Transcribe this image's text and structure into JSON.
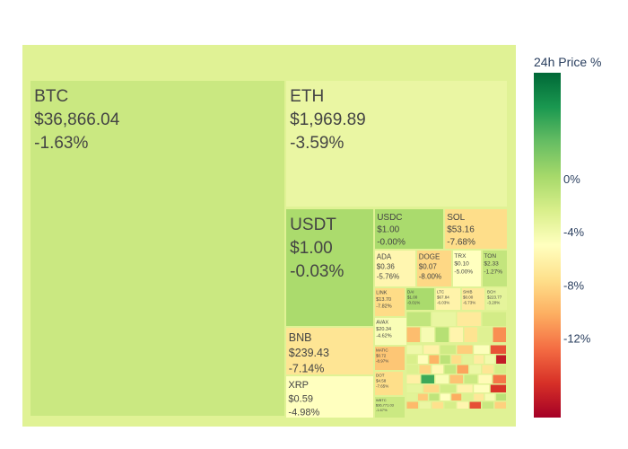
{
  "chart_data": {
    "type": "treemap",
    "colorbar": {
      "title": "24h Price %",
      "ticks": [
        "0%",
        "-4%",
        "-8%",
        "-12%"
      ],
      "tick_values": [
        0,
        -4,
        -8,
        -12
      ],
      "range": [
        -18,
        8
      ],
      "colorscale": [
        "#a50026",
        "#d73027",
        "#f46d43",
        "#fdae61",
        "#fee08b",
        "#ffffbf",
        "#d9ef8b",
        "#a6d96a",
        "#66bd63",
        "#1a9850",
        "#006837"
      ]
    },
    "root_change": -2.9,
    "labeled_tiles": [
      {
        "symbol": "BTC",
        "price": "$36,866.04",
        "change_text": "-1.63%",
        "change": -1.63
      },
      {
        "symbol": "ETH",
        "price": "$1,969.89",
        "change_text": "-3.59%",
        "change": -3.59
      },
      {
        "symbol": "USDT",
        "price": "$1.00",
        "change_text": "-0.03%",
        "change": -0.03
      },
      {
        "symbol": "BNB",
        "price": "$239.43",
        "change_text": "-7.14%",
        "change": -7.14
      },
      {
        "symbol": "XRP",
        "price": "$0.59",
        "change_text": "-4.98%",
        "change": -4.98
      },
      {
        "symbol": "USDC",
        "price": "$1.00",
        "change_text": "-0.00%",
        "change": -0.0
      },
      {
        "symbol": "SOL",
        "price": "$53.16",
        "change_text": "-7.68%",
        "change": -7.68
      },
      {
        "symbol": "ADA",
        "price": "$0.36",
        "change_text": "-5.76%",
        "change": -5.76
      },
      {
        "symbol": "DOGE",
        "price": "$0.07",
        "change_text": "-8.00%",
        "change": -8.0
      },
      {
        "symbol": "TRX",
        "price": "$0.10",
        "change_text": "-5.00%",
        "change": -5.0
      },
      {
        "symbol": "TON",
        "price": "$2.33",
        "change_text": "-1.27%",
        "change": -1.27
      },
      {
        "symbol": "LINK",
        "price": "$13.70",
        "change_text": "-7.82%",
        "change": -7.82
      },
      {
        "symbol": "DAI",
        "price": "$1.00",
        "change_text": "-0.01%",
        "change": -0.01
      },
      {
        "symbol": "LTC",
        "price": "$67.84",
        "change_text": "-6.03%",
        "change": -6.03
      },
      {
        "symbol": "SHIB",
        "price": "$0.00",
        "change_text": "-6.73%",
        "change": -6.73
      },
      {
        "symbol": "BCH",
        "price": "$223.77",
        "change_text": "-3.20%",
        "change": -3.2
      },
      {
        "symbol": "AVAX",
        "price": "$20.34",
        "change_text": "-4.62%",
        "change": -4.62
      },
      {
        "symbol": "MATIC",
        "price": "$0.72",
        "change_text": "-8.97%",
        "change": -8.97
      },
      {
        "symbol": "DOT",
        "price": "$4.58",
        "change_text": "-7.65%",
        "change": -7.65
      },
      {
        "symbol": "WBTC",
        "price": "$36,771.03",
        "change_text": "-1.67%",
        "change": -1.67
      }
    ],
    "small_tiles_changes": [
      -1.2,
      -3.5,
      -6.8,
      -2.1,
      -9.4,
      -4.4,
      -0.6,
      -5.9,
      -7.3,
      -2.8,
      -11.5,
      -3.9,
      -6.1,
      -1.9,
      -8.6,
      -4.8,
      -13.9,
      -2.4,
      -5.2,
      -9.9,
      -0.9,
      -7.7,
      -3.1,
      -6.5,
      -4.1,
      -16.5,
      -2.6,
      -8.2,
      -5.6,
      -1.4,
      -10.6,
      -3.7,
      -7.1,
      -2.2,
      -6.3,
      4.2,
      -4.6,
      -9.1,
      -1.7,
      -5.4,
      -12.4,
      -3.3,
      -7.9,
      -2.0,
      -6.0,
      -4.9,
      -15.2,
      -3.0,
      -8.8,
      -1.1,
      -5.0,
      -10.2,
      -2.7,
      -6.9,
      -4.3,
      -0.8,
      -9.6,
      -3.6,
      -7.5,
      -2.3,
      -5.8,
      -14.1,
      -1.6,
      -8.4,
      -4.0,
      2.1,
      -6.6,
      -3.4,
      -11.0,
      -5.3,
      -2.9,
      -7.0,
      -4.7,
      -9.2,
      -1.3,
      -6.2,
      -3.8,
      -8.1,
      -12.9,
      -5.1
    ]
  }
}
